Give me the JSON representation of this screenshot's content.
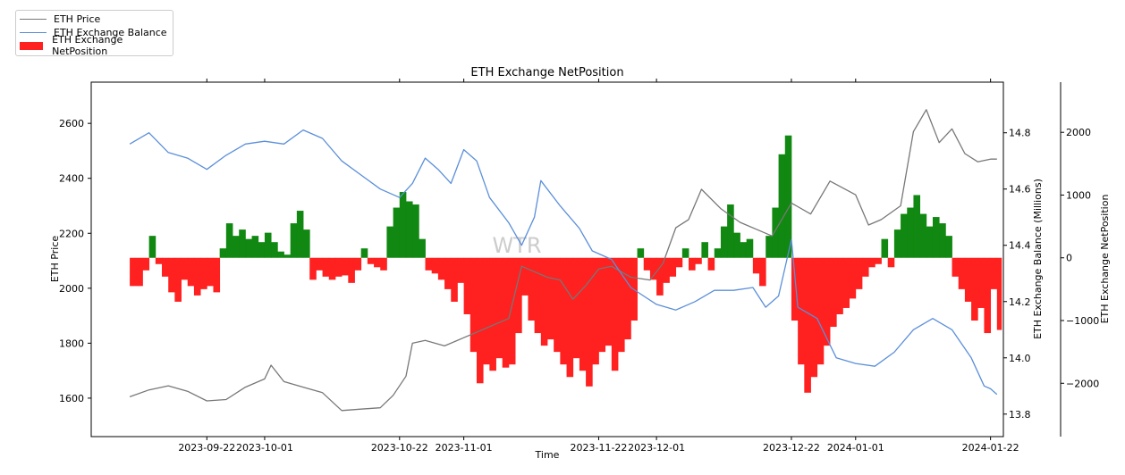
{
  "colors": {
    "price": "#777777",
    "balance": "#5b8fd9",
    "net_positive": "#118811",
    "net_negative": "#ff2020",
    "highlight": "#d9d9d9",
    "watermark": "#cccccc"
  },
  "legend": {
    "items": [
      {
        "label": "ETH Price",
        "kind": "line",
        "color_key": "price"
      },
      {
        "label": "ETH Exchange Balance",
        "kind": "line",
        "color_key": "balance"
      },
      {
        "label": "ETH Exchange NetPosition",
        "kind": "box",
        "color_key": "net_negative"
      }
    ]
  },
  "watermark": "WTR",
  "chart_data": {
    "type": "line",
    "title": "ETH Exchange NetPosition",
    "xlabel": "Time",
    "ylabel_left": "ETH Price",
    "ylabel_right_1": "ETH Exchange Balance (Millions)",
    "ylabel_right_2": "ETH Exchange NetPosition",
    "x_range": [
      "2023-09-04",
      "2024-01-24"
    ],
    "x_ticks": [
      "2023-09-22",
      "2023-10-01",
      "2023-10-22",
      "2023-11-01",
      "2023-11-22",
      "2023-12-01",
      "2023-12-22",
      "2024-01-01",
      "2024-01-22"
    ],
    "highlight_range": [
      "2024-01-22",
      "2024-01-27"
    ],
    "left_axis": {
      "range": [
        1460,
        2750
      ],
      "ticks": [
        1600,
        1800,
        2000,
        2200,
        2400,
        2600
      ]
    },
    "right_axis_1": {
      "range": [
        13.72,
        14.98
      ],
      "ticks": [
        13.8,
        14.0,
        14.2,
        14.4,
        14.6,
        14.8
      ],
      "tick_labels": [
        "13.8",
        "14.0",
        "14.2",
        "14.4",
        "14.6",
        "14.8"
      ]
    },
    "right_axis_2": {
      "range": [
        -2850,
        2800
      ],
      "ticks": [
        -2000,
        -1000,
        0,
        1000,
        2000
      ],
      "tick_labels": [
        "−2000",
        "−1000",
        "0",
        "1000",
        "2000"
      ]
    },
    "series": [
      {
        "name": "ETH Price",
        "axis": "left",
        "points": [
          [
            "2023-09-10",
            1605
          ],
          [
            "2023-09-13",
            1630
          ],
          [
            "2023-09-16",
            1645
          ],
          [
            "2023-09-19",
            1625
          ],
          [
            "2023-09-22",
            1590
          ],
          [
            "2023-09-25",
            1595
          ],
          [
            "2023-09-28",
            1640
          ],
          [
            "2023-10-01",
            1670
          ],
          [
            "2023-10-02",
            1720
          ],
          [
            "2023-10-04",
            1660
          ],
          [
            "2023-10-07",
            1640
          ],
          [
            "2023-10-10",
            1620
          ],
          [
            "2023-10-13",
            1555
          ],
          [
            "2023-10-16",
            1560
          ],
          [
            "2023-10-19",
            1565
          ],
          [
            "2023-10-21",
            1610
          ],
          [
            "2023-10-23",
            1680
          ],
          [
            "2023-10-24",
            1800
          ],
          [
            "2023-10-26",
            1810
          ],
          [
            "2023-10-29",
            1790
          ],
          [
            "2023-11-01",
            1820
          ],
          [
            "2023-11-03",
            1840
          ],
          [
            "2023-11-05",
            1860
          ],
          [
            "2023-11-08",
            1890
          ],
          [
            "2023-11-10",
            2080
          ],
          [
            "2023-11-12",
            2060
          ],
          [
            "2023-11-14",
            2040
          ],
          [
            "2023-11-16",
            2030
          ],
          [
            "2023-11-18",
            1960
          ],
          [
            "2023-11-20",
            2010
          ],
          [
            "2023-11-22",
            2070
          ],
          [
            "2023-11-24",
            2080
          ],
          [
            "2023-11-27",
            2040
          ],
          [
            "2023-11-30",
            2030
          ],
          [
            "2023-12-02",
            2090
          ],
          [
            "2023-12-04",
            2220
          ],
          [
            "2023-12-06",
            2250
          ],
          [
            "2023-12-08",
            2360
          ],
          [
            "2023-12-11",
            2290
          ],
          [
            "2023-12-14",
            2240
          ],
          [
            "2023-12-17",
            2210
          ],
          [
            "2023-12-19",
            2190
          ],
          [
            "2023-12-22",
            2310
          ],
          [
            "2023-12-25",
            2270
          ],
          [
            "2023-12-28",
            2390
          ],
          [
            "2024-01-01",
            2340
          ],
          [
            "2024-01-03",
            2230
          ],
          [
            "2024-01-05",
            2250
          ],
          [
            "2024-01-08",
            2300
          ],
          [
            "2024-01-10",
            2570
          ],
          [
            "2024-01-12",
            2650
          ],
          [
            "2024-01-14",
            2530
          ],
          [
            "2024-01-16",
            2580
          ],
          [
            "2024-01-18",
            2490
          ],
          [
            "2024-01-20",
            2460
          ],
          [
            "2024-01-22",
            2470
          ],
          [
            "2024-01-23",
            2470
          ]
        ]
      },
      {
        "name": "ETH Exchange Balance",
        "axis": "right_1",
        "points": [
          [
            "2023-09-10",
            14.76
          ],
          [
            "2023-09-13",
            14.8
          ],
          [
            "2023-09-16",
            14.73
          ],
          [
            "2023-09-19",
            14.71
          ],
          [
            "2023-09-22",
            14.67
          ],
          [
            "2023-09-25",
            14.72
          ],
          [
            "2023-09-28",
            14.76
          ],
          [
            "2023-10-01",
            14.77
          ],
          [
            "2023-10-04",
            14.76
          ],
          [
            "2023-10-07",
            14.81
          ],
          [
            "2023-10-10",
            14.78
          ],
          [
            "2023-10-13",
            14.7
          ],
          [
            "2023-10-16",
            14.65
          ],
          [
            "2023-10-19",
            14.6
          ],
          [
            "2023-10-22",
            14.57
          ],
          [
            "2023-10-24",
            14.62
          ],
          [
            "2023-10-26",
            14.71
          ],
          [
            "2023-10-28",
            14.67
          ],
          [
            "2023-10-30",
            14.62
          ],
          [
            "2023-11-01",
            14.74
          ],
          [
            "2023-11-03",
            14.7
          ],
          [
            "2023-11-05",
            14.57
          ],
          [
            "2023-11-08",
            14.48
          ],
          [
            "2023-11-10",
            14.4
          ],
          [
            "2023-11-12",
            14.5
          ],
          [
            "2023-11-13",
            14.63
          ],
          [
            "2023-11-16",
            14.54
          ],
          [
            "2023-11-19",
            14.46
          ],
          [
            "2023-11-21",
            14.38
          ],
          [
            "2023-11-24",
            14.35
          ],
          [
            "2023-11-27",
            14.25
          ],
          [
            "2023-11-29",
            14.22
          ],
          [
            "2023-12-01",
            14.19
          ],
          [
            "2023-12-04",
            14.17
          ],
          [
            "2023-12-07",
            14.2
          ],
          [
            "2023-12-10",
            14.24
          ],
          [
            "2023-12-13",
            14.24
          ],
          [
            "2023-12-16",
            14.25
          ],
          [
            "2023-12-18",
            14.18
          ],
          [
            "2023-12-20",
            14.22
          ],
          [
            "2023-12-22",
            14.42
          ],
          [
            "2023-12-23",
            14.18
          ],
          [
            "2023-12-26",
            14.14
          ],
          [
            "2023-12-29",
            14.0
          ],
          [
            "2024-01-01",
            13.98
          ],
          [
            "2024-01-04",
            13.97
          ],
          [
            "2024-01-07",
            14.02
          ],
          [
            "2024-01-10",
            14.1
          ],
          [
            "2024-01-13",
            14.14
          ],
          [
            "2024-01-16",
            14.1
          ],
          [
            "2024-01-19",
            14.0
          ],
          [
            "2024-01-21",
            13.9
          ],
          [
            "2024-01-22",
            13.89
          ],
          [
            "2024-01-23",
            13.87
          ]
        ]
      },
      {
        "name": "ETH Exchange NetPosition",
        "axis": "right_2",
        "style": "bars",
        "points": [
          [
            "2023-09-10",
            -450
          ],
          [
            "2023-09-12",
            -200
          ],
          [
            "2023-09-13",
            350
          ],
          [
            "2023-09-14",
            -100
          ],
          [
            "2023-09-15",
            -300
          ],
          [
            "2023-09-16",
            -550
          ],
          [
            "2023-09-17",
            -700
          ],
          [
            "2023-09-18",
            -350
          ],
          [
            "2023-09-19",
            -450
          ],
          [
            "2023-09-20",
            -600
          ],
          [
            "2023-09-21",
            -500
          ],
          [
            "2023-09-22",
            -450
          ],
          [
            "2023-09-23",
            -550
          ],
          [
            "2023-09-24",
            150
          ],
          [
            "2023-09-25",
            550
          ],
          [
            "2023-09-26",
            350
          ],
          [
            "2023-09-27",
            450
          ],
          [
            "2023-09-28",
            300
          ],
          [
            "2023-09-29",
            350
          ],
          [
            "2023-09-30",
            250
          ],
          [
            "2023-10-01",
            400
          ],
          [
            "2023-10-02",
            250
          ],
          [
            "2023-10-03",
            100
          ],
          [
            "2023-10-04",
            50
          ],
          [
            "2023-10-05",
            550
          ],
          [
            "2023-10-06",
            750
          ],
          [
            "2023-10-07",
            450
          ],
          [
            "2023-10-08",
            -350
          ],
          [
            "2023-10-09",
            -200
          ],
          [
            "2023-10-10",
            -300
          ],
          [
            "2023-10-11",
            -350
          ],
          [
            "2023-10-12",
            -300
          ],
          [
            "2023-10-13",
            -280
          ],
          [
            "2023-10-14",
            -400
          ],
          [
            "2023-10-15",
            -200
          ],
          [
            "2023-10-16",
            150
          ],
          [
            "2023-10-17",
            -100
          ],
          [
            "2023-10-18",
            -150
          ],
          [
            "2023-10-19",
            -200
          ],
          [
            "2023-10-20",
            500
          ],
          [
            "2023-10-21",
            800
          ],
          [
            "2023-10-22",
            1050
          ],
          [
            "2023-10-23",
            900
          ],
          [
            "2023-10-24",
            850
          ],
          [
            "2023-10-25",
            300
          ],
          [
            "2023-10-26",
            -200
          ],
          [
            "2023-10-27",
            -250
          ],
          [
            "2023-10-28",
            -350
          ],
          [
            "2023-10-29",
            -500
          ],
          [
            "2023-10-30",
            -700
          ],
          [
            "2023-10-31",
            -400
          ],
          [
            "2023-11-01",
            -900
          ],
          [
            "2023-11-02",
            -1500
          ],
          [
            "2023-11-03",
            -2000
          ],
          [
            "2023-11-04",
            -1700
          ],
          [
            "2023-11-05",
            -1800
          ],
          [
            "2023-11-06",
            -1600
          ],
          [
            "2023-11-07",
            -1750
          ],
          [
            "2023-11-08",
            -1700
          ],
          [
            "2023-11-09",
            -1200
          ],
          [
            "2023-11-10",
            -600
          ],
          [
            "2023-11-11",
            -1000
          ],
          [
            "2023-11-12",
            -1200
          ],
          [
            "2023-11-13",
            -1400
          ],
          [
            "2023-11-14",
            -1300
          ],
          [
            "2023-11-15",
            -1500
          ],
          [
            "2023-11-16",
            -1700
          ],
          [
            "2023-11-17",
            -1900
          ],
          [
            "2023-11-18",
            -1600
          ],
          [
            "2023-11-19",
            -1800
          ],
          [
            "2023-11-20",
            -2050
          ],
          [
            "2023-11-21",
            -1700
          ],
          [
            "2023-11-22",
            -1500
          ],
          [
            "2023-11-23",
            -1400
          ],
          [
            "2023-11-24",
            -1800
          ],
          [
            "2023-11-25",
            -1500
          ],
          [
            "2023-11-26",
            -1300
          ],
          [
            "2023-11-27",
            -1000
          ],
          [
            "2023-11-28",
            150
          ],
          [
            "2023-11-29",
            -200
          ],
          [
            "2023-11-30",
            -350
          ],
          [
            "2023-12-01",
            -600
          ],
          [
            "2023-12-02",
            -400
          ],
          [
            "2023-12-03",
            -300
          ],
          [
            "2023-12-04",
            -150
          ],
          [
            "2023-12-05",
            150
          ],
          [
            "2023-12-06",
            -200
          ],
          [
            "2023-12-07",
            -100
          ],
          [
            "2023-12-08",
            250
          ],
          [
            "2023-12-09",
            -200
          ],
          [
            "2023-12-10",
            150
          ],
          [
            "2023-12-11",
            500
          ],
          [
            "2023-12-12",
            850
          ],
          [
            "2023-12-13",
            400
          ],
          [
            "2023-12-14",
            250
          ],
          [
            "2023-12-15",
            300
          ],
          [
            "2023-12-16",
            -250
          ],
          [
            "2023-12-17",
            -450
          ],
          [
            "2023-12-18",
            350
          ],
          [
            "2023-12-19",
            800
          ],
          [
            "2023-12-20",
            1650
          ],
          [
            "2023-12-21",
            1950
          ],
          [
            "2023-12-22",
            -1000
          ],
          [
            "2023-12-23",
            -1700
          ],
          [
            "2023-12-24",
            -2150
          ],
          [
            "2023-12-25",
            -1900
          ],
          [
            "2023-12-26",
            -1700
          ],
          [
            "2023-12-27",
            -1400
          ],
          [
            "2023-12-28",
            -1100
          ],
          [
            "2023-12-29",
            -900
          ],
          [
            "2023-12-30",
            -800
          ],
          [
            "2023-12-31",
            -650
          ],
          [
            "2024-01-01",
            -500
          ],
          [
            "2024-01-02",
            -300
          ],
          [
            "2024-01-03",
            -150
          ],
          [
            "2024-01-04",
            -100
          ],
          [
            "2024-01-05",
            300
          ],
          [
            "2024-01-06",
            -150
          ],
          [
            "2024-01-07",
            450
          ],
          [
            "2024-01-08",
            700
          ],
          [
            "2024-01-09",
            800
          ],
          [
            "2024-01-10",
            1000
          ],
          [
            "2024-01-11",
            700
          ],
          [
            "2024-01-12",
            500
          ],
          [
            "2024-01-13",
            650
          ],
          [
            "2024-01-14",
            550
          ],
          [
            "2024-01-15",
            350
          ],
          [
            "2024-01-16",
            -300
          ],
          [
            "2024-01-17",
            -500
          ],
          [
            "2024-01-18",
            -700
          ],
          [
            "2024-01-19",
            -1000
          ],
          [
            "2024-01-20",
            -800
          ],
          [
            "2024-01-21",
            -1200
          ],
          [
            "2024-01-22",
            -500
          ],
          [
            "2024-01-23",
            -1150
          ]
        ]
      }
    ]
  }
}
